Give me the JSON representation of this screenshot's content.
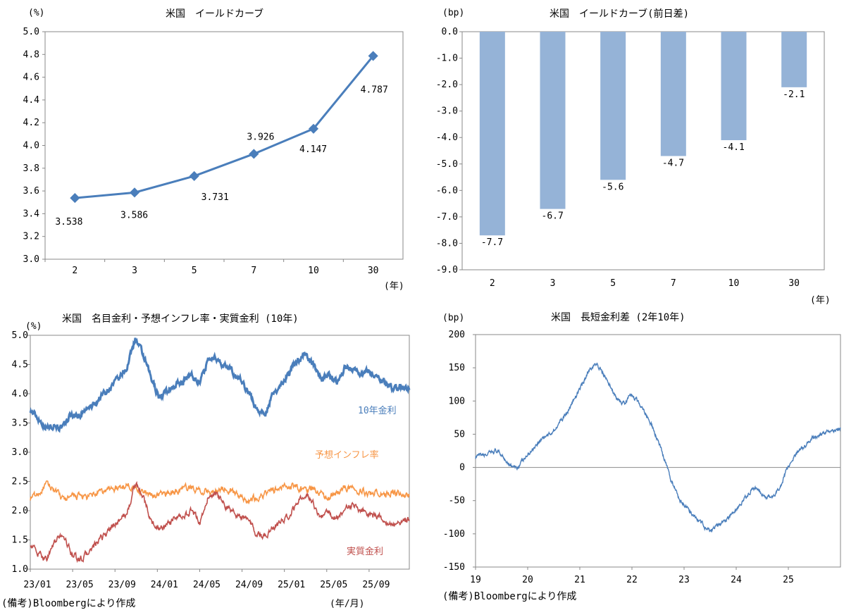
{
  "chart_data": [
    {
      "id": "curve",
      "type": "line",
      "title": "米国　イールドカーブ",
      "ylabel": "(%)",
      "xunit": "(年)",
      "ylim": [
        3.0,
        5.0
      ],
      "yticks": [
        "5.0",
        "4.8",
        "4.6",
        "4.4",
        "4.2",
        "4.0",
        "3.8",
        "3.6",
        "3.4",
        "3.2",
        "3.0"
      ],
      "categories": [
        "2",
        "3",
        "5",
        "7",
        "10",
        "30"
      ],
      "values": [
        3.538,
        3.586,
        3.731,
        3.926,
        4.147,
        4.787
      ],
      "labels": [
        "3.538",
        "3.586",
        "3.731",
        "3.926",
        "4.147",
        "4.787"
      ],
      "color": "#4a7ebb"
    },
    {
      "id": "change",
      "type": "bar",
      "title": "米国　イールドカーブ(前日差)",
      "ylabel": "(bp)",
      "xunit": "(年)",
      "ylim": [
        -9.0,
        0.0
      ],
      "yticks": [
        "0.0",
        "-1.0",
        "-2.0",
        "-3.0",
        "-4.0",
        "-5.0",
        "-6.0",
        "-7.0",
        "-8.0",
        "-9.0"
      ],
      "categories": [
        "2",
        "3",
        "5",
        "7",
        "10",
        "30"
      ],
      "values": [
        -7.7,
        -6.7,
        -5.6,
        -4.7,
        -4.1,
        -2.1
      ],
      "labels": [
        "-7.7",
        "-6.7",
        "-5.6",
        "-4.7",
        "-4.1",
        "-2.1"
      ],
      "color": "#95b3d7"
    },
    {
      "id": "rates",
      "type": "line",
      "title": "米国　名目金利・予想インフレ率・実質金利 (10年)",
      "ylabel": "(%)",
      "xunit": "(年/月)",
      "ylim": [
        1.0,
        5.0
      ],
      "yticks": [
        "5.0",
        "4.5",
        "4.0",
        "3.5",
        "3.0",
        "2.5",
        "2.0",
        "1.5",
        "1.0"
      ],
      "xticks": [
        "23/01",
        "23/05",
        "23/09",
        "24/01",
        "24/05",
        "24/09",
        "25/01",
        "25/05",
        "25/09"
      ],
      "months": 35.8,
      "series": [
        {
          "name": "10年金利",
          "color": "#4a7ebb",
          "anchors": [
            3.72,
            3.58,
            3.42,
            3.48,
            3.4,
            3.65,
            3.62,
            3.72,
            3.82,
            4.0,
            4.12,
            4.25,
            4.45,
            4.95,
            4.65,
            4.25,
            3.95,
            4.05,
            4.15,
            4.22,
            4.35,
            4.18,
            4.55,
            4.62,
            4.48,
            4.38,
            4.25,
            4.05,
            3.75,
            3.65,
            3.95,
            4.15,
            4.35,
            4.55,
            4.68,
            4.52,
            4.28,
            4.32,
            4.18,
            4.45,
            4.45,
            4.35,
            4.4,
            4.28,
            4.2,
            4.08,
            4.12,
            4.1
          ]
        },
        {
          "name": "予想インフレ率",
          "color": "#f79646",
          "anchors": [
            2.22,
            2.28,
            2.45,
            2.35,
            2.2,
            2.22,
            2.25,
            2.22,
            2.28,
            2.32,
            2.38,
            2.38,
            2.45,
            2.4,
            2.32,
            2.25,
            2.28,
            2.3,
            2.32,
            2.38,
            2.4,
            2.35,
            2.32,
            2.35,
            2.38,
            2.32,
            2.25,
            2.18,
            2.22,
            2.28,
            2.35,
            2.38,
            2.42,
            2.42,
            2.35,
            2.38,
            2.3,
            2.22,
            2.32,
            2.4,
            2.38,
            2.35,
            2.3,
            2.32,
            2.28,
            2.3,
            2.28,
            2.27
          ]
        },
        {
          "name": "実質金利",
          "color": "#c0504d",
          "anchors": [
            1.45,
            1.25,
            1.18,
            1.45,
            1.6,
            1.3,
            1.15,
            1.25,
            1.4,
            1.55,
            1.7,
            1.85,
            1.95,
            2.45,
            2.25,
            1.8,
            1.7,
            1.75,
            1.85,
            1.9,
            2.0,
            1.8,
            2.2,
            2.3,
            2.1,
            2.0,
            1.9,
            1.85,
            1.6,
            1.55,
            1.7,
            1.8,
            1.9,
            2.1,
            2.3,
            2.15,
            1.9,
            1.95,
            1.85,
            2.05,
            2.1,
            2.0,
            1.95,
            1.9,
            1.82,
            1.78,
            1.8,
            1.85
          ]
        }
      ]
    },
    {
      "id": "spread",
      "type": "line",
      "title": "米国　長短金利差 (2年10年)",
      "ylabel": "(bp)",
      "ylim": [
        -150,
        200
      ],
      "yticks": [
        "200",
        "150",
        "100",
        "50",
        "0",
        "-50",
        "-100",
        "-150"
      ],
      "xticks": [
        "19",
        "20",
        "21",
        "22",
        "23",
        "24",
        "25"
      ],
      "years": 7.0,
      "series": [
        {
          "name": "2年10年",
          "color": "#4a7ebb",
          "anchors": [
            15,
            18,
            20,
            25,
            18,
            5,
            -2,
            10,
            22,
            35,
            45,
            50,
            62,
            75,
            90,
            110,
            130,
            150,
            155,
            140,
            120,
            100,
            95,
            110,
            100,
            85,
            65,
            40,
            10,
            -20,
            -45,
            -60,
            -70,
            -80,
            -90,
            -95,
            -85,
            -80,
            -70,
            -60,
            -45,
            -30,
            -35,
            -45,
            -45,
            -30,
            -5,
            15,
            25,
            35,
            45,
            50,
            55,
            55,
            58
          ]
        }
      ]
    }
  ],
  "footer": {
    "note1": "(備考)Bloombergにより作成",
    "note2": "(備考)Bloombergにより作成"
  }
}
